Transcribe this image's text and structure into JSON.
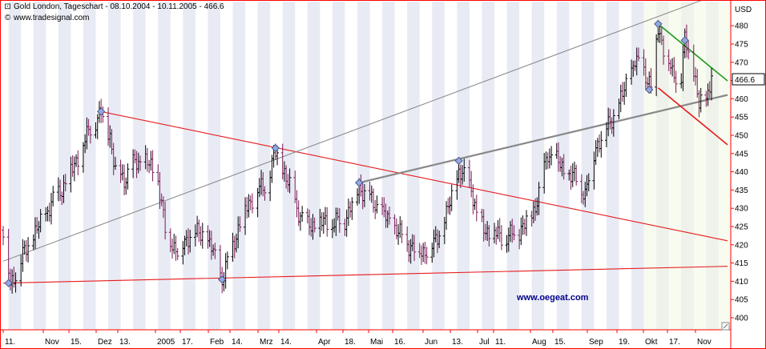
{
  "header": {
    "title": "Gold London, Tageschart - 08.10.2004 - 10.11.2005 - 466.6",
    "source": "www.tradesignal.com"
  },
  "watermark": "www.oegeat.com",
  "colors": {
    "frame": "#ff0000",
    "band": "#e8ebf4",
    "highlight": "#f2f8e2",
    "bar": "#000000",
    "bar_alt": "#7a1a5a",
    "trend_red": "#e8191c",
    "trend_gray": "#888888",
    "trend_green": "#1e9a1e",
    "marker": "#93a8e2",
    "price_box": "#ffffff"
  },
  "chart_data": {
    "type": "ohlc",
    "title": "Gold London, Tageschart - 08.10.2004 - 10.11.2005 - 466.6",
    "ylabel": "USD",
    "unit": "USD",
    "ylim": [
      398,
      487
    ],
    "yticks": [
      400,
      405,
      410,
      415,
      420,
      425,
      430,
      435,
      440,
      445,
      450,
      455,
      460,
      465,
      470,
      475,
      480
    ],
    "axis_position": "right",
    "grid": false,
    "last_price": 466.6,
    "x_tick_labels": [
      "11.",
      "Nov",
      "15.",
      "Dez",
      "13.",
      "2005",
      "17.",
      "Feb",
      "14.",
      "Mrz",
      "14.",
      "Apr",
      "18.",
      "Mai",
      "16.",
      "Jun",
      "13.",
      "Jul",
      "11.",
      "Aug",
      "15.",
      "Sep",
      "19.",
      "Okt",
      "17.",
      "Nov"
    ],
    "trend_lines": [
      {
        "color": "red",
        "points": [
          [
            "2004-12-02",
            456.5
          ],
          [
            "2005-11-10",
            422
          ]
        ]
      },
      {
        "color": "red",
        "points": [
          [
            "2004-10-08",
            409.5
          ],
          [
            "2005-11-10",
            414
          ]
        ]
      },
      {
        "color": "gray",
        "points": [
          [
            "2004-10-08",
            415.5
          ],
          [
            "2005-11-10",
            488
          ]
        ]
      },
      {
        "color": "gray",
        "points": [
          [
            "2005-04-26",
            437
          ],
          [
            "2005-11-10",
            460
          ]
        ]
      },
      {
        "color": "green",
        "points": [
          [
            "2005-10-11",
            480.5
          ],
          [
            "2005-11-10",
            468.5
          ]
        ]
      },
      {
        "color": "red",
        "points": [
          [
            "2005-10-11",
            463
          ],
          [
            "2005-11-10",
            451
          ]
        ]
      }
    ],
    "markers": [
      [
        "2004-10-11",
        409.5
      ],
      [
        "2004-12-02",
        456.5
      ],
      [
        "2005-02-08",
        410.5
      ],
      [
        "2005-03-10",
        446.5
      ],
      [
        "2005-04-26",
        437
      ],
      [
        "2005-06-21",
        443
      ],
      [
        "2005-10-11",
        480.5
      ],
      [
        "2005-10-06",
        462.5
      ],
      [
        "2005-10-26",
        476
      ]
    ],
    "anchors": [
      [
        "2004-10-08",
        424
      ],
      [
        "2004-10-12",
        409
      ],
      [
        "2004-10-20",
        418
      ],
      [
        "2004-10-28",
        425
      ],
      [
        "2004-11-05",
        432
      ],
      [
        "2004-11-12",
        437
      ],
      [
        "2004-11-19",
        444
      ],
      [
        "2004-11-26",
        452
      ],
      [
        "2004-12-02",
        456
      ],
      [
        "2004-12-07",
        450
      ],
      [
        "2004-12-10",
        440
      ],
      [
        "2004-12-15",
        438
      ],
      [
        "2004-12-20",
        442
      ],
      [
        "2004-12-27",
        443
      ],
      [
        "2005-01-03",
        438
      ],
      [
        "2005-01-07",
        424
      ],
      [
        "2005-01-14",
        418
      ],
      [
        "2005-01-21",
        423
      ],
      [
        "2005-01-28",
        423
      ],
      [
        "2005-02-03",
        418
      ],
      [
        "2005-02-08",
        410
      ],
      [
        "2005-02-14",
        420
      ],
      [
        "2005-02-21",
        430
      ],
      [
        "2005-02-28",
        435
      ],
      [
        "2005-03-04",
        436
      ],
      [
        "2005-03-10",
        445
      ],
      [
        "2005-03-15",
        440
      ],
      [
        "2005-03-22",
        430
      ],
      [
        "2005-03-28",
        425
      ],
      [
        "2005-04-04",
        426
      ],
      [
        "2005-04-11",
        426
      ],
      [
        "2005-04-18",
        427
      ],
      [
        "2005-04-26",
        436
      ],
      [
        "2005-05-03",
        432
      ],
      [
        "2005-05-10",
        428
      ],
      [
        "2005-05-17",
        424
      ],
      [
        "2005-05-24",
        420
      ],
      [
        "2005-05-31",
        418
      ],
      [
        "2005-06-07",
        420
      ],
      [
        "2005-06-14",
        428
      ],
      [
        "2005-06-21",
        440
      ],
      [
        "2005-06-28",
        436
      ],
      [
        "2005-07-01",
        428
      ],
      [
        "2005-07-06",
        424
      ],
      [
        "2005-07-12",
        423
      ],
      [
        "2005-07-18",
        422
      ],
      [
        "2005-07-25",
        424
      ],
      [
        "2005-08-01",
        428
      ],
      [
        "2005-08-05",
        434
      ],
      [
        "2005-08-10",
        445
      ],
      [
        "2005-08-15",
        443
      ],
      [
        "2005-08-19",
        440
      ],
      [
        "2005-08-26",
        438
      ],
      [
        "2005-08-31",
        434
      ],
      [
        "2005-09-06",
        447
      ],
      [
        "2005-09-12",
        452
      ],
      [
        "2005-09-19",
        458
      ],
      [
        "2005-09-23",
        464
      ],
      [
        "2005-09-28",
        470
      ],
      [
        "2005-10-03",
        468
      ],
      [
        "2005-10-07",
        463
      ],
      [
        "2005-10-11",
        480
      ],
      [
        "2005-10-14",
        474
      ],
      [
        "2005-10-19",
        467
      ],
      [
        "2005-10-24",
        466
      ],
      [
        "2005-10-26",
        476
      ],
      [
        "2005-10-31",
        468
      ],
      [
        "2005-11-03",
        458
      ],
      [
        "2005-11-07",
        460
      ],
      [
        "2005-11-10",
        466.6
      ]
    ]
  }
}
